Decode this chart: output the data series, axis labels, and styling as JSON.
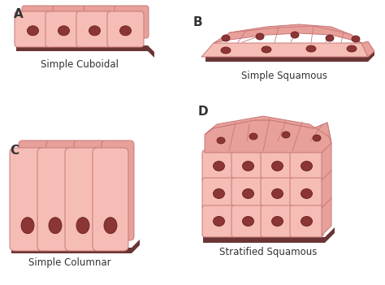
{
  "bg_color": "#ffffff",
  "cell_fill": "#f5bdb5",
  "cell_edge": "#c87878",
  "cell_edge_lw": 0.7,
  "dark_cell": "#e8a09a",
  "nucleus_fill": "#8b3535",
  "nucleus_edge": "#6a2020",
  "base_fill": "#6b3535",
  "label_color": "#333333",
  "caption_color": "#333333",
  "label_fontsize": 11,
  "caption_fontsize": 8.5,
  "label_A": "A",
  "label_B": "B",
  "label_C": "C",
  "label_D": "D",
  "caption_A": "Simple Cuboidal",
  "caption_B": "Simple Squamous",
  "caption_C": "Simple Columnar",
  "caption_D": "Stratified Squamous"
}
